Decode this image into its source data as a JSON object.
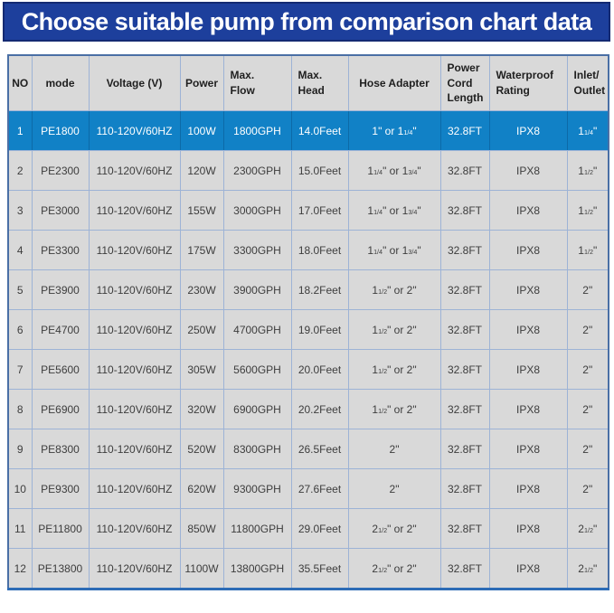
{
  "banner": {
    "title": "Choose suitable pump from comparison chart data"
  },
  "colors": {
    "banner_bg": "#1d3f9c",
    "banner_border": "#142a72",
    "highlight_row_bg": "#1181c6",
    "highlight_row_text": "#ffffff",
    "cell_bg": "#d9d9d9",
    "grid_line": "#9db3d6",
    "outer_border": "#4a6fa5",
    "bottom_border": "#2d6cb6"
  },
  "chart_data": {
    "type": "table",
    "title": "Choose suitable pump from comparison chart data",
    "highlighted_row_no": "1",
    "columns": [
      {
        "key": "no",
        "label": "NO"
      },
      {
        "key": "mode",
        "label": "mode"
      },
      {
        "key": "voltage",
        "label": "Voltage (V)"
      },
      {
        "key": "power",
        "label": "Power"
      },
      {
        "key": "max_flow",
        "label": "Max.\nFlow"
      },
      {
        "key": "max_head",
        "label": "Max.\nHead"
      },
      {
        "key": "hose_adapter",
        "label": "Hose Adapter"
      },
      {
        "key": "power_cord_length",
        "label": "Power\nCord\nLength"
      },
      {
        "key": "waterproof_rating",
        "label": "Waterproof\nRating"
      },
      {
        "key": "inlet_outlet",
        "label": "Inlet/\nOutlet"
      }
    ],
    "rows": [
      {
        "no": "1",
        "mode": "PE1800",
        "voltage": "110-120V/60HZ",
        "power": "100W",
        "max_flow": "1800GPH",
        "max_head": "14.0Feet",
        "hose_adapter": "1\" or 1[1/4]\"",
        "power_cord_length": "32.8FT",
        "waterproof_rating": "IPX8",
        "inlet_outlet": "1[1/4]\""
      },
      {
        "no": "2",
        "mode": "PE2300",
        "voltage": "110-120V/60HZ",
        "power": "120W",
        "max_flow": "2300GPH",
        "max_head": "15.0Feet",
        "hose_adapter": "1[1/4]\" or 1[3/4]\"",
        "power_cord_length": "32.8FT",
        "waterproof_rating": "IPX8",
        "inlet_outlet": "1[1/2]\""
      },
      {
        "no": "3",
        "mode": "PE3000",
        "voltage": "110-120V/60HZ",
        "power": "155W",
        "max_flow": "3000GPH",
        "max_head": "17.0Feet",
        "hose_adapter": "1[1/4]\" or 1[3/4]\"",
        "power_cord_length": "32.8FT",
        "waterproof_rating": "IPX8",
        "inlet_outlet": "1[1/2]\""
      },
      {
        "no": "4",
        "mode": "PE3300",
        "voltage": "110-120V/60HZ",
        "power": "175W",
        "max_flow": "3300GPH",
        "max_head": "18.0Feet",
        "hose_adapter": "1[1/4]\" or 1[3/4]\"",
        "power_cord_length": "32.8FT",
        "waterproof_rating": "IPX8",
        "inlet_outlet": "1[1/2]\""
      },
      {
        "no": "5",
        "mode": "PE3900",
        "voltage": "110-120V/60HZ",
        "power": "230W",
        "max_flow": "3900GPH",
        "max_head": "18.2Feet",
        "hose_adapter": "1[1/2]\" or 2\"",
        "power_cord_length": "32.8FT",
        "waterproof_rating": "IPX8",
        "inlet_outlet": "2\""
      },
      {
        "no": "6",
        "mode": "PE4700",
        "voltage": "110-120V/60HZ",
        "power": "250W",
        "max_flow": "4700GPH",
        "max_head": "19.0Feet",
        "hose_adapter": "1[1/2]\" or 2\"",
        "power_cord_length": "32.8FT",
        "waterproof_rating": "IPX8",
        "inlet_outlet": "2\""
      },
      {
        "no": "7",
        "mode": "PE5600",
        "voltage": "110-120V/60HZ",
        "power": "305W",
        "max_flow": "5600GPH",
        "max_head": "20.0Feet",
        "hose_adapter": "1[1/2]\" or 2\"",
        "power_cord_length": "32.8FT",
        "waterproof_rating": "IPX8",
        "inlet_outlet": "2\""
      },
      {
        "no": "8",
        "mode": "PE6900",
        "voltage": "110-120V/60HZ",
        "power": "320W",
        "max_flow": "6900GPH",
        "max_head": "20.2Feet",
        "hose_adapter": "1[1/2]\" or 2\"",
        "power_cord_length": "32.8FT",
        "waterproof_rating": "IPX8",
        "inlet_outlet": "2\""
      },
      {
        "no": "9",
        "mode": "PE8300",
        "voltage": "110-120V/60HZ",
        "power": "520W",
        "max_flow": "8300GPH",
        "max_head": "26.5Feet",
        "hose_adapter": "2\"",
        "power_cord_length": "32.8FT",
        "waterproof_rating": "IPX8",
        "inlet_outlet": "2\""
      },
      {
        "no": "10",
        "mode": "PE9300",
        "voltage": "110-120V/60HZ",
        "power": "620W",
        "max_flow": "9300GPH",
        "max_head": "27.6Feet",
        "hose_adapter": "2\"",
        "power_cord_length": "32.8FT",
        "waterproof_rating": "IPX8",
        "inlet_outlet": "2\""
      },
      {
        "no": "11",
        "mode": "PE11800",
        "voltage": "110-120V/60HZ",
        "power": "850W",
        "max_flow": "11800GPH",
        "max_head": "29.0Feet",
        "hose_adapter": "2[1/2]\" or 2\"",
        "power_cord_length": "32.8FT",
        "waterproof_rating": "IPX8",
        "inlet_outlet": "2[1/2]\""
      },
      {
        "no": "12",
        "mode": "PE13800",
        "voltage": "110-120V/60HZ",
        "power": "1100W",
        "max_flow": "13800GPH",
        "max_head": "35.5Feet",
        "hose_adapter": "2[1/2]\" or 2\"",
        "power_cord_length": "32.8FT",
        "waterproof_rating": "IPX8",
        "inlet_outlet": "2[1/2]\""
      }
    ]
  }
}
